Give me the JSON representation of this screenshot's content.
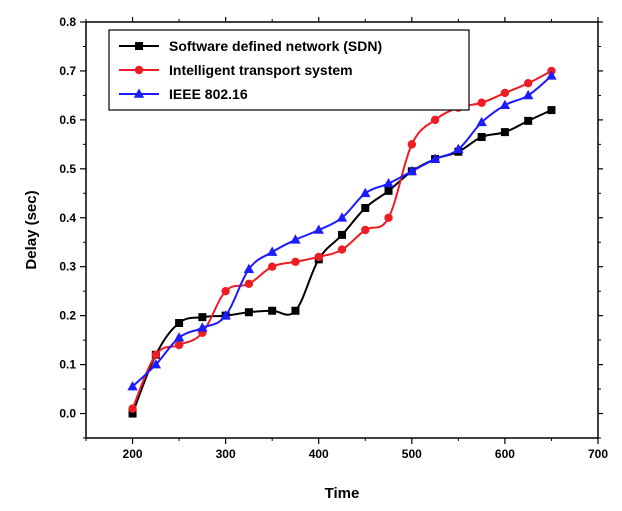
{
  "chart_data": {
    "type": "line",
    "xlabel": "Time",
    "ylabel": "Delay (sec)",
    "xlim": [
      150,
      700
    ],
    "ylim": [
      -0.05,
      0.8
    ],
    "xticks": [
      200,
      300,
      400,
      500,
      600,
      700
    ],
    "yticks": [
      0.0,
      0.1,
      0.2,
      0.3,
      0.4,
      0.5,
      0.6,
      0.7,
      0.8
    ],
    "ytick_labels": [
      "0.0",
      "0.1",
      "0.2",
      "0.3",
      "0.4",
      "0.5",
      "0.6",
      "0.7",
      "0.8"
    ],
    "grid": false,
    "legend_position": "top-left",
    "x": [
      200,
      225,
      250,
      275,
      300,
      325,
      350,
      375,
      400,
      425,
      450,
      475,
      500,
      525,
      550,
      575,
      600,
      625,
      650
    ],
    "series": [
      {
        "name": "Software defined network (SDN)",
        "color": "#000000",
        "marker": "square",
        "values": [
          0.0,
          0.12,
          0.185,
          0.197,
          0.2,
          0.207,
          0.21,
          0.21,
          0.315,
          0.365,
          0.42,
          0.455,
          0.495,
          0.52,
          0.535,
          0.565,
          0.575,
          0.598,
          0.62
        ]
      },
      {
        "name": "Intelligent transport system",
        "color": "#ee1c24",
        "marker": "circle",
        "values": [
          0.01,
          0.12,
          0.14,
          0.165,
          0.25,
          0.265,
          0.3,
          0.31,
          0.32,
          0.335,
          0.375,
          0.4,
          0.55,
          0.6,
          0.625,
          0.635,
          0.655,
          0.675,
          0.7
        ]
      },
      {
        "name": "IEEE 802.16",
        "color": "#1c1cff",
        "marker": "triangle",
        "values": [
          0.055,
          0.1,
          0.155,
          0.175,
          0.2,
          0.295,
          0.33,
          0.355,
          0.375,
          0.4,
          0.45,
          0.47,
          0.495,
          0.52,
          0.54,
          0.595,
          0.63,
          0.65,
          0.69
        ]
      }
    ]
  }
}
